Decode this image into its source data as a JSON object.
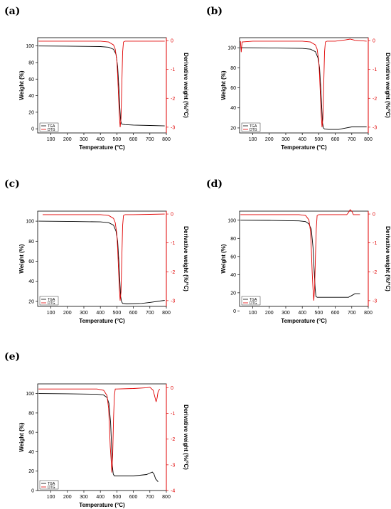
{
  "colors": {
    "tga": "#000000",
    "dtg": "#e00000"
  },
  "chart_data": [
    {
      "panel": "(a)",
      "type": "line",
      "xlabel": "Temperature (°C)",
      "ylabel": "Weight (%)",
      "y2label": "Derivative weight (%/°C)",
      "xlim": [
        20,
        800
      ],
      "ylim": [
        -5,
        110
      ],
      "y2lim": [
        -3.2,
        0.1
      ],
      "xticks": [
        "100",
        "200",
        "300",
        "400",
        "500",
        "600",
        "700",
        "800"
      ],
      "yticks": [
        "0",
        "20",
        "40",
        "60",
        "80",
        "100"
      ],
      "y2ticks": [
        "0",
        "-1",
        "-2",
        "-3"
      ],
      "legend": [
        "TGA",
        "DTG"
      ],
      "series": [
        {
          "name": "TGA",
          "axis": "left",
          "x": [
            25,
            200,
            400,
            450,
            480,
            495,
            505,
            512,
            518,
            523,
            528,
            535,
            550,
            600,
            700,
            790
          ],
          "y": [
            100,
            99.8,
            99.3,
            98.5,
            96,
            90,
            75,
            50,
            25,
            10,
            6,
            5.5,
            5,
            4.5,
            4,
            3.5
          ]
        },
        {
          "name": "DTG",
          "axis": "right",
          "x": [
            25,
            100,
            400,
            450,
            480,
            490,
            500,
            505,
            510,
            515,
            520,
            525,
            530,
            535,
            540,
            550,
            600,
            700,
            790
          ],
          "y": [
            -0.02,
            -0.02,
            -0.02,
            -0.05,
            -0.15,
            -0.3,
            -0.7,
            -1.2,
            -1.9,
            -2.6,
            -3.0,
            -2.7,
            -1.6,
            -0.4,
            -0.05,
            -0.02,
            -0.02,
            -0.02,
            -0.02
          ]
        }
      ]
    },
    {
      "panel": "(b)",
      "type": "line",
      "xlabel": "Temperature (°C)",
      "ylabel": "Weight (%)",
      "y2label": "Derivative weight (%/°C)",
      "xlim": [
        20,
        800
      ],
      "ylim": [
        15,
        110
      ],
      "y2lim": [
        -3.2,
        0.1
      ],
      "xticks": [
        "100",
        "200",
        "300",
        "400",
        "500",
        "600",
        "700",
        "800"
      ],
      "yticks": [
        "20",
        "40",
        "60",
        "80",
        "100"
      ],
      "y2ticks": [
        "0",
        "-1",
        "-2",
        "-3"
      ],
      "legend": [
        "TGA",
        "DTG"
      ],
      "series": [
        {
          "name": "TGA",
          "axis": "left",
          "x": [
            25,
            200,
            400,
            450,
            480,
            495,
            505,
            512,
            518,
            523,
            528,
            535,
            560,
            620,
            650,
            700,
            790
          ],
          "y": [
            100,
            99.8,
            99.3,
            98.5,
            96,
            90,
            80,
            60,
            40,
            25,
            20,
            19,
            18.5,
            18.5,
            19.5,
            21,
            21
          ]
        },
        {
          "name": "DTG",
          "axis": "right",
          "x": [
            25,
            30,
            35,
            100,
            400,
            450,
            480,
            490,
            500,
            505,
            510,
            515,
            520,
            525,
            530,
            535,
            540,
            550,
            600,
            660,
            690,
            720,
            790
          ],
          "y": [
            -0.02,
            -0.4,
            -0.05,
            -0.02,
            -0.02,
            -0.05,
            -0.15,
            -0.3,
            -0.7,
            -1.2,
            -1.9,
            -2.6,
            -3.0,
            -2.7,
            -1.6,
            -0.4,
            -0.05,
            -0.02,
            -0.02,
            0.02,
            0.05,
            0.01,
            -0.02
          ]
        }
      ]
    },
    {
      "panel": "(c)",
      "type": "line",
      "xlabel": "Temperature (°C)",
      "ylabel": "Weight (%)",
      "y2label": "Derivative weight (%/°C)",
      "xlim": [
        20,
        800
      ],
      "ylim": [
        15,
        110
      ],
      "y2lim": [
        -3.2,
        0.1
      ],
      "xticks": [
        "100",
        "200",
        "300",
        "400",
        "500",
        "600",
        "700",
        "800"
      ],
      "yticks": [
        "20",
        "40",
        "60",
        "80",
        "100"
      ],
      "y2ticks": [
        "0",
        "-1",
        "-2",
        "-3"
      ],
      "legend": [
        "TGA",
        "DTG"
      ],
      "series": [
        {
          "name": "TGA",
          "axis": "left",
          "x": [
            25,
            200,
            400,
            450,
            480,
            495,
            505,
            512,
            518,
            523,
            528,
            535,
            560,
            650,
            700,
            790
          ],
          "y": [
            100,
            99.8,
            99.3,
            98.5,
            96,
            90,
            80,
            60,
            40,
            25,
            20,
            18,
            17.5,
            18,
            19,
            21
          ]
        },
        {
          "name": "DTG",
          "axis": "right",
          "x": [
            50,
            100,
            400,
            450,
            480,
            490,
            500,
            505,
            510,
            515,
            520,
            525,
            530,
            535,
            540,
            550,
            600,
            700,
            790
          ],
          "y": [
            -0.02,
            -0.02,
            -0.02,
            -0.05,
            -0.15,
            -0.3,
            -0.7,
            -1.2,
            -1.9,
            -2.6,
            -3.0,
            -2.7,
            -1.6,
            -0.4,
            -0.05,
            -0.02,
            -0.02,
            -0.01,
            0.0
          ]
        }
      ]
    },
    {
      "panel": "(d)",
      "type": "line",
      "xlabel": "Temperature (°C)",
      "ylabel": "Weight (%)",
      "y2label": "Derivative weight (%/°C)",
      "xlim": [
        20,
        800
      ],
      "ylim": [
        5,
        110
      ],
      "y2lim": [
        -3.2,
        0.1
      ],
      "xticks": [
        "100",
        "200",
        "300",
        "400",
        "500",
        "600",
        "700",
        "800"
      ],
      "yticks": [
        "0",
        "20",
        "40",
        "60",
        "80",
        "100"
      ],
      "y2ticks": [
        "0",
        "-1",
        "-2",
        "-3"
      ],
      "legend": [
        "TGA",
        "DTG"
      ],
      "series": [
        {
          "name": "TGA",
          "axis": "left",
          "x": [
            25,
            200,
            380,
            420,
            440,
            455,
            465,
            472,
            478,
            483,
            490,
            500,
            600,
            680,
            700,
            720,
            750
          ],
          "y": [
            100,
            99.8,
            99.3,
            98.5,
            96,
            90,
            70,
            45,
            25,
            16,
            15,
            15,
            15,
            15,
            17,
            19,
            19
          ]
        },
        {
          "name": "DTG",
          "axis": "right",
          "x": [
            25,
            100,
            380,
            420,
            440,
            450,
            455,
            460,
            465,
            470,
            475,
            480,
            485,
            490,
            500,
            600,
            670,
            680,
            690,
            700,
            710,
            750
          ],
          "y": [
            -0.02,
            -0.02,
            -0.02,
            -0.05,
            -0.2,
            -0.6,
            -1.2,
            -2.0,
            -2.6,
            -3.0,
            -2.5,
            -1.5,
            -0.5,
            -0.05,
            -0.02,
            -0.02,
            -0.02,
            0.05,
            0.15,
            0.1,
            -0.02,
            -0.02
          ]
        }
      ]
    },
    {
      "panel": "(e)",
      "type": "line",
      "xlabel": "Temperature (°C)",
      "ylabel": "Weight (%)",
      "y2label": "Derivative weight (%/°C)",
      "xlim": [
        20,
        800
      ],
      "ylim": [
        0,
        110
      ],
      "y2lim": [
        -4,
        0.15
      ],
      "xticks": [
        "100",
        "200",
        "300",
        "400",
        "500",
        "600",
        "700",
        "800"
      ],
      "yticks": [
        "0",
        "20",
        "40",
        "60",
        "80",
        "100"
      ],
      "y2ticks": [
        "0",
        "-1",
        "-2",
        "-3",
        "-4"
      ],
      "legend": [
        "TGA",
        "DTG"
      ],
      "series": [
        {
          "name": "TGA",
          "axis": "left",
          "x": [
            25,
            200,
            380,
            420,
            440,
            452,
            462,
            468,
            473,
            478,
            485,
            500,
            600,
            680,
            700,
            715,
            725,
            735,
            750
          ],
          "y": [
            100,
            99.8,
            99.3,
            98.5,
            96,
            90,
            70,
            45,
            25,
            17,
            15,
            15,
            15,
            16.5,
            18,
            19,
            17,
            12,
            9
          ]
        },
        {
          "name": "DTG",
          "axis": "right",
          "x": [
            25,
            100,
            380,
            420,
            440,
            450,
            455,
            460,
            465,
            470,
            475,
            480,
            485,
            490,
            500,
            600,
            680,
            700,
            720,
            730,
            738,
            744,
            750,
            760
          ],
          "y": [
            -0.05,
            -0.05,
            -0.05,
            -0.1,
            -0.3,
            -0.8,
            -1.5,
            -2.3,
            -2.8,
            -3.3,
            -2.5,
            -1.2,
            -0.3,
            -0.05,
            -0.05,
            -0.03,
            0.0,
            0.02,
            -0.1,
            -0.35,
            -0.55,
            -0.4,
            -0.15,
            -0.05
          ]
        }
      ]
    }
  ]
}
